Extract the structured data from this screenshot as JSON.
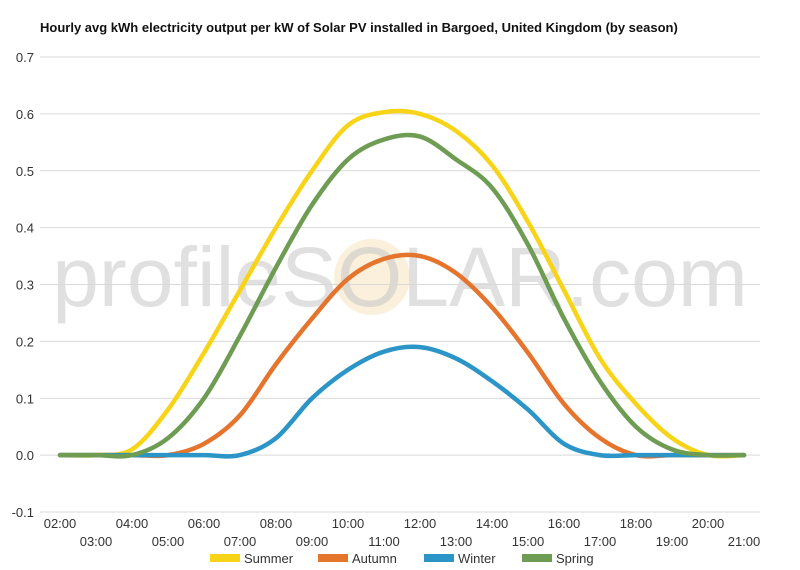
{
  "chart_data": {
    "type": "line",
    "title": "Hourly avg kWh electricity output per kW of Solar PV installed in Bargoed, United Kingdom (by season)",
    "xlabel": "",
    "ylabel": "",
    "ylim": [
      -0.1,
      0.7
    ],
    "yticks": [
      -0.1,
      0.0,
      0.1,
      0.2,
      0.3,
      0.4,
      0.5,
      0.6,
      0.7
    ],
    "grid": true,
    "legend_position": "bottom",
    "x": [
      "02:00",
      "03:00",
      "04:00",
      "05:00",
      "06:00",
      "07:00",
      "08:00",
      "09:00",
      "10:00",
      "11:00",
      "12:00",
      "13:00",
      "14:00",
      "15:00",
      "16:00",
      "17:00",
      "18:00",
      "19:00",
      "20:00",
      "21:00"
    ],
    "series": [
      {
        "name": "Summer",
        "color": "#f7d417",
        "values": [
          0.0,
          0.0,
          0.01,
          0.08,
          0.18,
          0.29,
          0.4,
          0.5,
          0.58,
          0.603,
          0.6,
          0.57,
          0.51,
          0.41,
          0.29,
          0.17,
          0.09,
          0.03,
          0.0,
          0.0
        ]
      },
      {
        "name": "Autumn",
        "color": "#e5742d",
        "values": [
          0.0,
          0.0,
          0.0,
          0.0,
          0.02,
          0.07,
          0.16,
          0.24,
          0.31,
          0.345,
          0.35,
          0.32,
          0.26,
          0.18,
          0.09,
          0.03,
          0.0,
          0.0,
          0.0,
          0.0
        ]
      },
      {
        "name": "Winter",
        "color": "#2b95c7",
        "values": [
          0.0,
          0.0,
          0.0,
          0.0,
          0.0,
          0.0,
          0.03,
          0.1,
          0.15,
          0.182,
          0.19,
          0.17,
          0.13,
          0.08,
          0.02,
          0.0,
          0.0,
          0.0,
          0.0,
          0.0
        ]
      },
      {
        "name": "Spring",
        "color": "#6d9c52",
        "values": [
          0.0,
          0.0,
          0.0,
          0.03,
          0.1,
          0.21,
          0.33,
          0.44,
          0.52,
          0.555,
          0.56,
          0.52,
          0.47,
          0.37,
          0.24,
          0.13,
          0.05,
          0.01,
          0.0,
          0.0
        ]
      }
    ]
  },
  "watermark": {
    "text": "profileSOLAR.com",
    "logo_color": "#f5ddb0"
  }
}
